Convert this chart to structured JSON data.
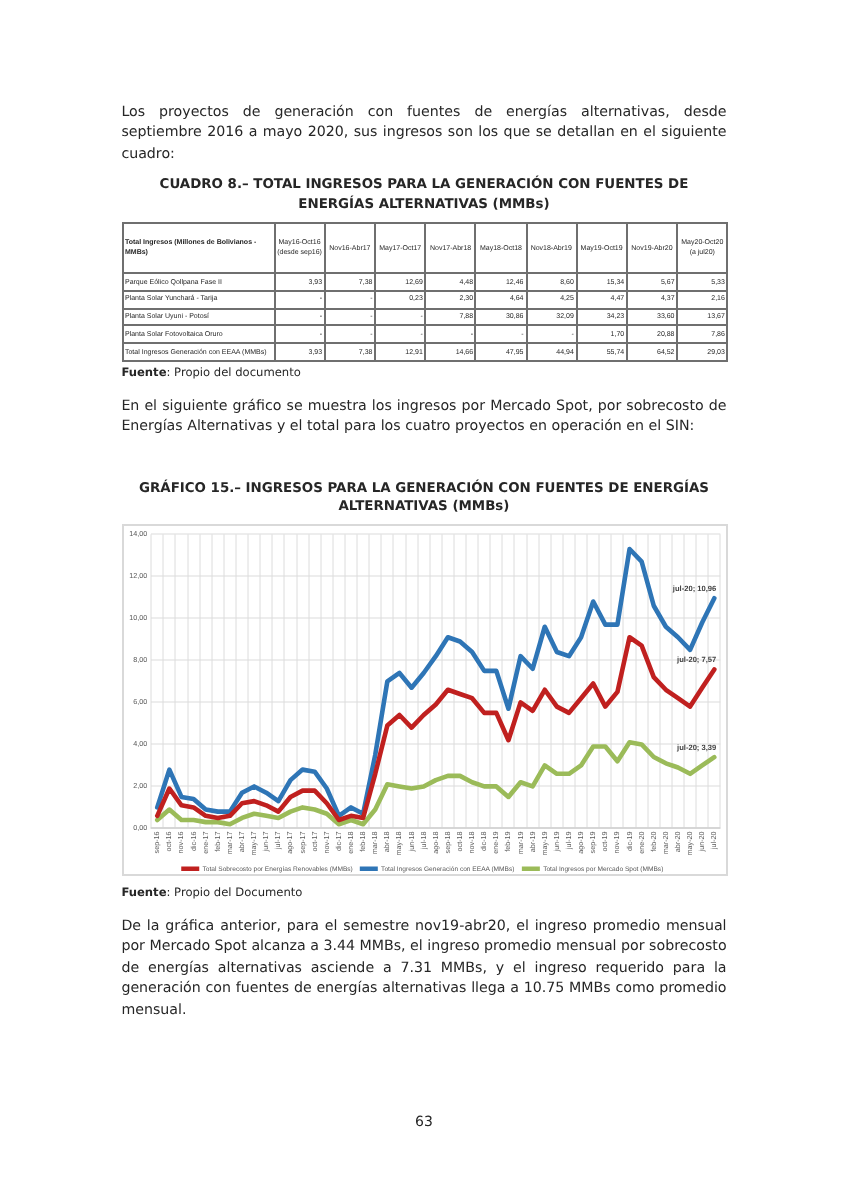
{
  "chart_data": [
    {
      "type": "other",
      "title": "CUADRO 8.– TOTAL INGRESOS PARA LA GENERACIÓN CON FUENTES DE ENERGÍAS ALTERNATIVAS (MMBs)",
      "ylabel": "Total Ingresos (Millones de Bolivianos - MMBs)",
      "categories": [
        "May16-Oct16 (desde sep16)",
        "Nov16-Abr17",
        "May17-Oct17",
        "Nov17-Abr18",
        "May18-Oct18",
        "Nov18-Abr19",
        "May19-Oct19",
        "Nov19-Abr20",
        "May20-Oct20 (a jul20)"
      ],
      "y_categories": [
        "Parque Eólico Qollpana Fase II",
        "Planta Solar Yunchará - Tarija",
        "Planta Solar Uyuni - Potosí",
        "Planta Solar Fotovoltaica Oruro",
        "Total Ingresos Generación con EEAA (MMBs)"
      ],
      "cell_labels": [
        [
          "3,93",
          "7,38",
          "12,69",
          "4,48",
          "12,46",
          "8,60",
          "15,34",
          "5,67",
          "5,33"
        ],
        [
          "-",
          "-",
          "0,23",
          "2,30",
          "4,64",
          "4,25",
          "4,47",
          "4,37",
          "2,16"
        ],
        [
          "-",
          "-",
          "-",
          "7,88",
          "30,86",
          "32,09",
          "34,23",
          "33,60",
          "13,67"
        ],
        [
          "-",
          "-",
          "-",
          "-",
          "-",
          "-",
          "1,70",
          "20,88",
          "7,86"
        ],
        [
          "3,93",
          "7,38",
          "12,91",
          "14,66",
          "47,95",
          "44,94",
          "55,74",
          "64,52",
          "29,03"
        ]
      ],
      "annotations": [
        "Los proyectos de generación con fuentes de energías alternativas, desde septiembre 2016 a mayo 2020, sus ingresos son los que se detallan en el siguiente cuadro:",
        "Fuente: Propio del documento"
      ]
    },
    {
      "type": "line",
      "title": "GRÁFICO 15.– INGRESOS PARA LA GENERACIÓN CON FUENTES DE ENERGÍAS ALTERNATIVAS (MMBs)",
      "categories": [
        "sep-16",
        "oct-16",
        "nov-16",
        "dic-16",
        "ene-17",
        "feb-17",
        "mar-17",
        "abr-17",
        "may-17",
        "jun-17",
        "jul-17",
        "ago-17",
        "sep-17",
        "oct-17",
        "nov-17",
        "dic-17",
        "ene-18",
        "feb-18",
        "mar-18",
        "abr-18",
        "may-18",
        "jun-18",
        "jul-18",
        "ago-18",
        "sep-18",
        "oct-18",
        "nov-18",
        "dic-18",
        "ene-19",
        "feb-19",
        "mar-19",
        "abr-19",
        "may-19",
        "jun-19",
        "jul-19",
        "ago-19",
        "sep-19",
        "oct-19",
        "nov-19",
        "dic-19",
        "ene-20",
        "feb-20",
        "mar-20",
        "abr-20",
        "may-20",
        "jun-20",
        "jul-20"
      ],
      "series": [
        {
          "name": "Total Sobrecosto por Energías Renovables (MMBs)",
          "color": "#c0201f",
          "values": [
            0.6,
            1.9,
            1.1,
            1.0,
            0.6,
            0.5,
            0.6,
            1.2,
            1.3,
            1.1,
            0.8,
            1.5,
            1.8,
            1.8,
            1.2,
            0.4,
            0.6,
            0.5,
            2.6,
            4.9,
            5.4,
            4.8,
            5.4,
            5.9,
            6.6,
            6.4,
            6.2,
            5.5,
            5.5,
            4.2,
            6.0,
            5.6,
            6.6,
            5.8,
            5.5,
            6.2,
            6.9,
            5.8,
            6.5,
            9.1,
            8.7,
            7.2,
            6.6,
            6.2,
            5.8,
            6.7,
            7.57
          ]
        },
        {
          "name": "Total Ingresos Generación con EEAA (MMBs)",
          "color": "#2e75b6",
          "values": [
            1.0,
            2.8,
            1.5,
            1.4,
            0.9,
            0.8,
            0.8,
            1.7,
            2.0,
            1.7,
            1.3,
            2.3,
            2.8,
            2.7,
            1.9,
            0.6,
            1.0,
            0.7,
            3.5,
            7.0,
            7.4,
            6.7,
            7.4,
            8.2,
            9.1,
            8.9,
            8.4,
            7.5,
            7.5,
            5.7,
            8.2,
            7.6,
            9.6,
            8.4,
            8.2,
            9.1,
            10.8,
            9.7,
            9.7,
            13.3,
            12.7,
            10.6,
            9.6,
            9.1,
            8.5,
            9.8,
            10.96
          ]
        },
        {
          "name": "Total Ingresos por Mercado Spot (MMBs)",
          "color": "#9bbb59",
          "values": [
            0.4,
            0.9,
            0.4,
            0.4,
            0.3,
            0.3,
            0.2,
            0.5,
            0.7,
            0.6,
            0.5,
            0.8,
            1.0,
            0.9,
            0.7,
            0.2,
            0.4,
            0.2,
            0.9,
            2.1,
            2.0,
            1.9,
            2.0,
            2.3,
            2.5,
            2.5,
            2.2,
            2.0,
            2.0,
            1.5,
            2.2,
            2.0,
            3.0,
            2.6,
            2.6,
            3.0,
            3.9,
            3.9,
            3.2,
            4.1,
            4.0,
            3.4,
            3.1,
            2.9,
            2.6,
            3.0,
            3.39
          ]
        }
      ],
      "ylim": [
        0,
        14
      ],
      "yticks": [
        {
          "value": 0,
          "label": "0,00"
        },
        {
          "value": 2,
          "label": "2,00"
        },
        {
          "value": 4,
          "label": "4,00"
        },
        {
          "value": 6,
          "label": "6,00"
        },
        {
          "value": 8,
          "label": "8,00"
        },
        {
          "value": 10,
          "label": "10,00"
        },
        {
          "value": 12,
          "label": "12,00"
        },
        {
          "value": 14,
          "label": "14,00"
        }
      ],
      "grid": true,
      "legend": "bottom",
      "annotations": [
        "En el siguiente gráfico se muestra los ingresos por Mercado Spot, por sobrecosto de Energías Alternativas y el total para los cuatro proyectos en operación en el SIN:",
        {
          "text": "jul-20; 10,96",
          "x": "jul-20",
          "y": 10.96
        },
        {
          "text": "jul-20; 7,57",
          "x": "jul-20",
          "y": 7.57
        },
        {
          "text": "jul-20; 3,39",
          "x": "jul-20",
          "y": 3.39
        },
        "Fuente: Propio del Documento",
        "De la gráfica anterior, para el semestre nov19-abr20, el ingreso promedio mensual por Mercado Spot alcanza a 3.44 MMBs, el ingreso promedio mensual por sobrecosto de energías alternativas asciende a 7.31 MMBs, y el ingreso requerido para la generación con fuentes de energías alternativas llega a 10.75 MMBs como promedio mensual.",
        "63"
      ]
    }
  ]
}
